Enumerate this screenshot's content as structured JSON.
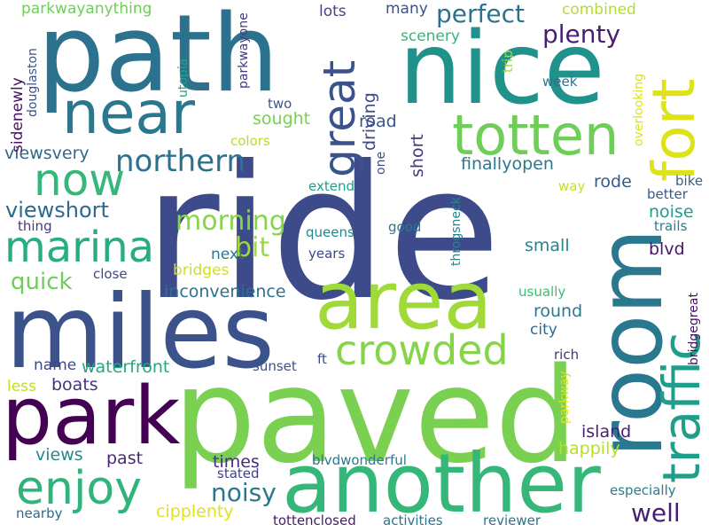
{
  "words": [
    {
      "text": "ride",
      "color": "#3d4b8a"
    },
    {
      "text": "paved",
      "color": "#7ad151"
    },
    {
      "text": "path",
      "color": "#2c728e"
    },
    {
      "text": "nice",
      "color": "#21918c"
    },
    {
      "text": "miles",
      "color": "#3b528b"
    },
    {
      "text": "room",
      "color": "#2a788e"
    },
    {
      "text": "another",
      "color": "#35b779"
    },
    {
      "text": "area",
      "color": "#a0da39"
    },
    {
      "text": "park",
      "color": "#440154"
    },
    {
      "text": "near",
      "color": "#2a788e"
    },
    {
      "text": "fort",
      "color": "#dde318"
    },
    {
      "text": "totten",
      "color": "#6ece58"
    },
    {
      "text": "traffic",
      "color": "#1f9e89"
    },
    {
      "text": "enjoy",
      "color": "#2fb47c"
    },
    {
      "text": "marina",
      "color": "#27ad81"
    },
    {
      "text": "now",
      "color": "#35b779"
    },
    {
      "text": "great",
      "color": "#3b528b"
    },
    {
      "text": "crowded",
      "color": "#86d549"
    },
    {
      "text": "northern",
      "color": "#2c728e"
    },
    {
      "text": "well",
      "color": "#481f70"
    },
    {
      "text": "noisy",
      "color": "#2a788e"
    },
    {
      "text": "plenty",
      "color": "#481f70"
    },
    {
      "text": "perfect",
      "color": "#2c728e"
    },
    {
      "text": "morning",
      "color": "#86d549"
    },
    {
      "text": "quick",
      "color": "#6ece58"
    },
    {
      "text": "viewshort",
      "color": "#31688e"
    },
    {
      "text": "bit",
      "color": "#9fda3a"
    },
    {
      "text": "viewsvery",
      "color": "#31688e"
    },
    {
      "text": "finallyopen",
      "color": "#2a788e"
    },
    {
      "text": "inconvenience",
      "color": "#2c728e"
    },
    {
      "text": "round",
      "color": "#2a788e"
    },
    {
      "text": "boats",
      "color": "#46337e"
    },
    {
      "text": "waterfront",
      "color": "#22a884"
    },
    {
      "text": "island",
      "color": "#481f70"
    },
    {
      "text": "times",
      "color": "#472d7b"
    },
    {
      "text": "past",
      "color": "#482878"
    },
    {
      "text": "views",
      "color": "#238a8d"
    },
    {
      "text": "happily",
      "color": "#b5de2b"
    },
    {
      "text": "cipplenty",
      "color": "#dde318"
    },
    {
      "text": "road",
      "color": "#38588c"
    },
    {
      "text": "short",
      "color": "#443983"
    },
    {
      "text": "driving",
      "color": "#3e4a89"
    },
    {
      "text": "sought",
      "color": "#7ad151"
    },
    {
      "text": "rode",
      "color": "#365c8d"
    },
    {
      "text": "noise",
      "color": "#1f9e89"
    },
    {
      "text": "small",
      "color": "#25848e"
    },
    {
      "text": "blvd",
      "color": "#48186a"
    },
    {
      "text": "parkwayanything",
      "color": "#6ece58"
    },
    {
      "text": "combined",
      "color": "#b5de2b"
    },
    {
      "text": "scenery",
      "color": "#35b779"
    },
    {
      "text": "lots",
      "color": "#414487"
    },
    {
      "text": "many",
      "color": "#3b528b"
    },
    {
      "text": "sidenewly",
      "color": "#471063"
    },
    {
      "text": "next",
      "color": "#2a788e"
    },
    {
      "text": "bridges",
      "color": "#d0e11c"
    },
    {
      "text": "city",
      "color": "#306a8e"
    },
    {
      "text": "name",
      "color": "#3f4788"
    },
    {
      "text": "less",
      "color": "#c2df23"
    },
    {
      "text": "ft",
      "color": "#3e4c8a"
    },
    {
      "text": "sunset",
      "color": "#3b528b"
    },
    {
      "text": "rich",
      "color": "#46337e"
    },
    {
      "text": "stated",
      "color": "#424086"
    },
    {
      "text": "blvdwonderful",
      "color": "#2a788e"
    },
    {
      "text": "especially",
      "color": "#287d8e"
    },
    {
      "text": "tottenclosed",
      "color": "#481a6c"
    },
    {
      "text": "activities",
      "color": "#2c728e"
    },
    {
      "text": "reviewer",
      "color": "#2c728e"
    },
    {
      "text": "nearby",
      "color": "#31688e"
    },
    {
      "text": "close",
      "color": "#3f4788"
    },
    {
      "text": "years",
      "color": "#3e4989"
    },
    {
      "text": "queens",
      "color": "#25858e"
    },
    {
      "text": "good",
      "color": "#2a788e"
    },
    {
      "text": "thing",
      "color": "#453781"
    },
    {
      "text": "extend",
      "color": "#1fa187"
    },
    {
      "text": "two",
      "color": "#38598c"
    },
    {
      "text": "week",
      "color": "#2d708e"
    },
    {
      "text": "usually",
      "color": "#3dbc74"
    },
    {
      "text": "better",
      "color": "#38598c"
    },
    {
      "text": "trails",
      "color": "#287d8e"
    },
    {
      "text": "bike",
      "color": "#34618d"
    },
    {
      "text": "way",
      "color": "#c8e020"
    },
    {
      "text": "colors",
      "color": "#b5de2b"
    },
    {
      "text": "douglaston",
      "color": "#3b528b"
    },
    {
      "text": "utopia",
      "color": "#1fa187"
    },
    {
      "text": "parkwayone",
      "color": "#443a83"
    },
    {
      "text": "trip",
      "color": "#9fda3a"
    },
    {
      "text": "one",
      "color": "#3e4a89"
    },
    {
      "text": "throgsneck",
      "color": "#25848e"
    },
    {
      "text": "overlooking",
      "color": "#dde318"
    },
    {
      "text": "bridgegreat",
      "color": "#471063"
    },
    {
      "text": "parkway",
      "color": "#dde318"
    }
  ]
}
